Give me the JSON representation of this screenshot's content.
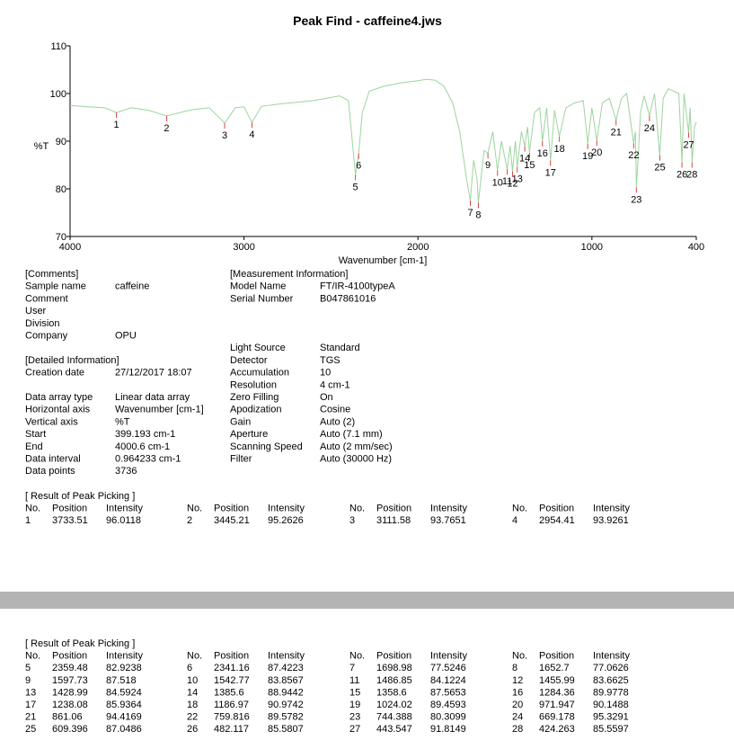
{
  "title": "Peak Find - caffeine4.jws",
  "chart_data": {
    "type": "line",
    "x_label": "Wavenumber [cm-1]",
    "y_label": "%T",
    "xlim": [
      4000,
      400
    ],
    "ylim": [
      70,
      110
    ],
    "xticks": [
      4000,
      3000,
      2000,
      1000,
      400
    ],
    "yticks": [
      70,
      80,
      90,
      100,
      110
    ],
    "color": "#9ed49e",
    "x": [
      4000,
      3900,
      3800,
      3733,
      3650,
      3550,
      3445,
      3300,
      3200,
      3111,
      3050,
      3000,
      2954,
      2900,
      2800,
      2600,
      2450,
      2400,
      2359,
      2341,
      2320,
      2280,
      2200,
      2100,
      2000,
      1950,
      1900,
      1850,
      1800,
      1760,
      1720,
      1699,
      1680,
      1660,
      1653,
      1620,
      1598,
      1570,
      1543,
      1520,
      1487,
      1470,
      1456,
      1440,
      1429,
      1405,
      1386,
      1370,
      1359,
      1330,
      1300,
      1284,
      1260,
      1238,
      1215,
      1187,
      1150,
      1100,
      1050,
      1024,
      1000,
      972,
      940,
      900,
      861,
      830,
      800,
      760,
      750,
      744,
      720,
      700,
      669,
      640,
      610,
      590,
      560,
      530,
      500,
      482,
      470,
      444,
      435,
      424,
      410,
      400
    ],
    "values": [
      97.5,
      97.2,
      97.0,
      96.0,
      97.0,
      96.5,
      95.3,
      96.6,
      97.0,
      93.8,
      97.0,
      97.2,
      93.9,
      97.3,
      97.8,
      98.5,
      99.5,
      98.5,
      82.9,
      87.4,
      96,
      100.5,
      101.5,
      102.2,
      102.7,
      103,
      102.8,
      101.5,
      98,
      92,
      82,
      77.5,
      86,
      82,
      77.1,
      88,
      87.5,
      92,
      83.9,
      90,
      84.1,
      89,
      83.7,
      90,
      84.6,
      92,
      88.9,
      93,
      87.6,
      96,
      97,
      90.0,
      97,
      85.9,
      96.5,
      91.0,
      97,
      98,
      98.5,
      89.5,
      97,
      90.1,
      98,
      99,
      94.4,
      99,
      100,
      89.6,
      92,
      80.3,
      96,
      99.5,
      95.3,
      100,
      87.0,
      99,
      101,
      100.5,
      100,
      85.6,
      100,
      91.8,
      97,
      85.6,
      93,
      94
    ]
  },
  "comments": {
    "title": "[Comments]",
    "fields": [
      {
        "label": "Sample name",
        "value": "caffeine"
      },
      {
        "label": "Comment"
      },
      {
        "label": "User"
      },
      {
        "label": "Division"
      },
      {
        "label": "Company",
        "value": "OPU"
      }
    ]
  },
  "detailed_information": {
    "title": "[Detailed Information]",
    "fields": [
      {
        "label": "Creation date",
        "value": "27/12/2017 18:07"
      },
      {
        "label": "Data array type",
        "value": "Linear data array"
      },
      {
        "label": "Horizontal axis",
        "value": "Wavenumber [cm-1]"
      },
      {
        "label": "Vertical axis",
        "value": "%T"
      },
      {
        "label": "Start",
        "value": "399.193 cm-1"
      },
      {
        "label": "End",
        "value": "4000.6 cm-1"
      },
      {
        "label": "Data interval",
        "value": "0.964233 cm-1"
      },
      {
        "label": "Data points",
        "value": "3736"
      }
    ]
  },
  "measurement_information": {
    "title": "[Measurement Information]",
    "fields": [
      {
        "label": "Model Name",
        "value": "FT/IR-4100typeA"
      },
      {
        "label": "Serial Number",
        "value": "B047861016"
      },
      {
        "label": "Light Source",
        "value": "Standard"
      },
      {
        "label": "Detector",
        "value": "TGS"
      },
      {
        "label": "Accumulation",
        "value": "10"
      },
      {
        "label": "Resolution",
        "value": "4 cm-1"
      },
      {
        "label": "Zero Filling",
        "value": "On"
      },
      {
        "label": "Apodization",
        "value": "Cosine"
      },
      {
        "label": "Gain",
        "value": "Auto (2)"
      },
      {
        "label": "Aperture",
        "value": "Auto (7.1 mm)"
      },
      {
        "label": "Scanning Speed",
        "value": "Auto (2 mm/sec)"
      },
      {
        "label": "Filter",
        "value": "Auto (30000 Hz)"
      }
    ]
  },
  "peak_sections": [
    {
      "title": "[ Result of Peak Picking ]",
      "headers": [
        "No.",
        "Position",
        "Intensity"
      ],
      "peaks": [
        {
          "no": 1,
          "position": 3733.51,
          "intensity": 96.0118
        },
        {
          "no": 2,
          "position": 3445.21,
          "intensity": 95.2626
        },
        {
          "no": 3,
          "position": 3111.58,
          "intensity": 93.7651
        },
        {
          "no": 4,
          "position": 2954.41,
          "intensity": 93.9261
        }
      ]
    },
    {
      "title": "[ Result of Peak Picking ]",
      "headers": [
        "No.",
        "Position",
        "Intensity"
      ],
      "peaks": [
        {
          "no": 5,
          "position": 2359.48,
          "intensity": 82.9238
        },
        {
          "no": 6,
          "position": 2341.16,
          "intensity": 87.4223
        },
        {
          "no": 7,
          "position": 1698.98,
          "intensity": 77.5246
        },
        {
          "no": 8,
          "position": 1652.7,
          "intensity": 77.0626
        },
        {
          "no": 9,
          "position": 1597.73,
          "intensity": 87.518
        },
        {
          "no": 10,
          "position": 1542.77,
          "intensity": 83.8567
        },
        {
          "no": 11,
          "position": 1486.85,
          "intensity": 84.1224
        },
        {
          "no": 12,
          "position": 1455.99,
          "intensity": 83.6625
        },
        {
          "no": 13,
          "position": 1428.99,
          "intensity": 84.5924
        },
        {
          "no": 14,
          "position": 1385.6,
          "intensity": 88.9442
        },
        {
          "no": 15,
          "position": 1358.6,
          "intensity": 87.5653
        },
        {
          "no": 16,
          "position": 1284.36,
          "intensity": 89.9778
        },
        {
          "no": 17,
          "position": 1238.08,
          "intensity": 85.9364
        },
        {
          "no": 18,
          "position": 1186.97,
          "intensity": 90.9742
        },
        {
          "no": 19,
          "position": 1024.02,
          "intensity": 89.4593
        },
        {
          "no": 20,
          "position": 971.947,
          "intensity": 90.1488
        },
        {
          "no": 21,
          "position": 861.06,
          "intensity": 94.4169
        },
        {
          "no": 22,
          "position": 759.816,
          "intensity": 89.5782
        },
        {
          "no": 23,
          "position": 744.388,
          "intensity": 80.3099
        },
        {
          "no": 24,
          "position": 669.178,
          "intensity": 95.3291
        },
        {
          "no": 25,
          "position": 609.396,
          "intensity": 87.0486
        },
        {
          "no": 26,
          "position": 482.117,
          "intensity": 85.5807
        },
        {
          "no": 27,
          "position": 443.547,
          "intensity": 91.8149
        },
        {
          "no": 28,
          "position": 424.263,
          "intensity": 85.5597
        }
      ]
    }
  ]
}
